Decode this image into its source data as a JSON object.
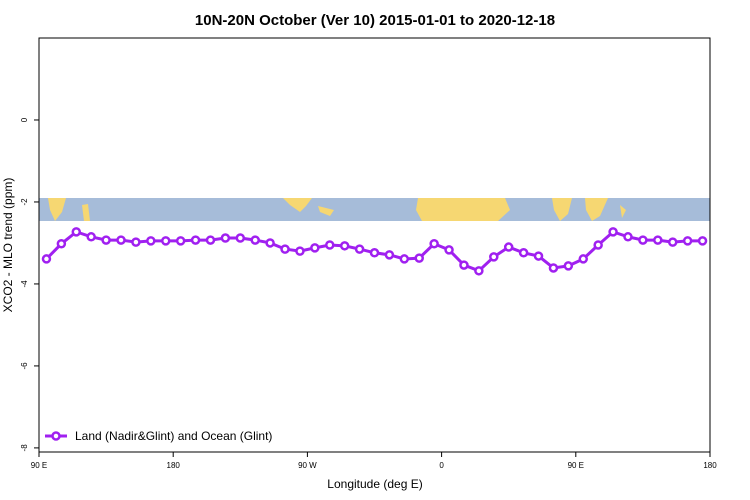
{
  "chart_data": {
    "type": "line",
    "title": "10N-20N October (Ver 10)   2015-01-01 to 2020-12-18",
    "x_label": "Longitude (deg E)",
    "y_label": "XCO2 - MLO trend (ppm)",
    "x": [
      95,
      105,
      115,
      125,
      135,
      145,
      155,
      165,
      175,
      185,
      195,
      205,
      215,
      225,
      235,
      245,
      255,
      265,
      275,
      285,
      295,
      305,
      315,
      325,
      335,
      345,
      355,
      365,
      375,
      385,
      395,
      405,
      415,
      425,
      435,
      445,
      455,
      465,
      475,
      485,
      495,
      505,
      515,
      525,
      535
    ],
    "series": [
      {
        "name": "Land (Nadir&Glint) and Ocean (Glint)",
        "color": "#a020f0",
        "values": [
          -3.39,
          -3.02,
          -2.73,
          -2.85,
          -2.93,
          -2.93,
          -2.98,
          -2.95,
          -2.95,
          -2.95,
          -2.93,
          -2.93,
          -2.88,
          -2.88,
          -2.93,
          -3.0,
          -3.15,
          -3.2,
          -3.12,
          -3.05,
          -3.07,
          -3.15,
          -3.24,
          -3.29,
          -3.39,
          -3.37,
          -3.02,
          -3.17,
          -3.54,
          -3.68,
          -3.34,
          -3.1,
          -3.24,
          -3.32,
          -3.61,
          -3.56,
          -3.39,
          -3.05,
          -2.73,
          -2.85,
          -2.93,
          -2.93,
          -2.98,
          -2.95,
          -2.95
        ]
      }
    ],
    "xlim": [
      90,
      540
    ],
    "xticks": [
      {
        "value": 90,
        "label": "90 E"
      },
      180,
      {
        "value": 270,
        "label": "90 W"
      },
      {
        "value": 360,
        "label": "0"
      },
      {
        "value": 450,
        "label": "90 E"
      },
      {
        "value": 540,
        "label": "180"
      }
    ],
    "ylim": [
      -8.1,
      2.0
    ],
    "yticks": [
      0,
      -2,
      -4,
      -6,
      -8
    ],
    "legend": "bottom-left"
  }
}
